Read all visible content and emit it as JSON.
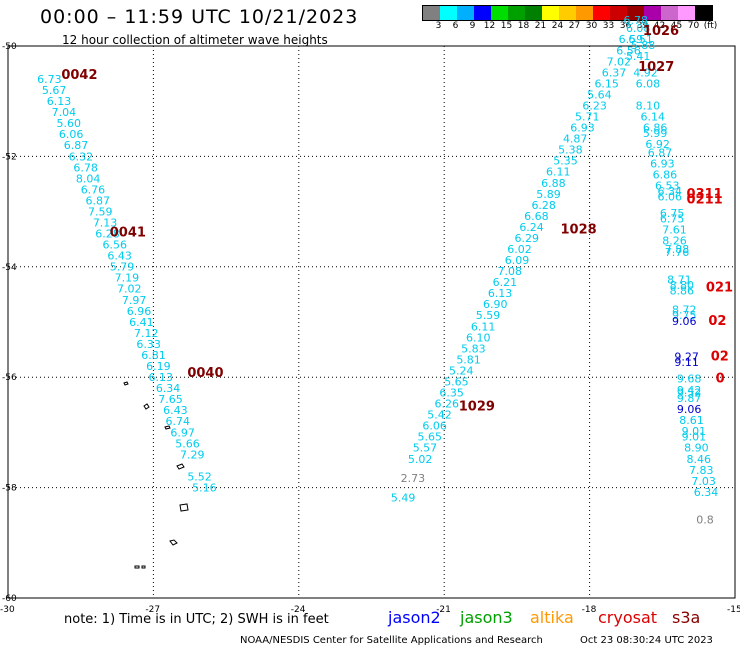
{
  "header": {
    "title": "00:00 – 11:59 UTC 10/21/2023",
    "subtitle": "12 hour collection of altimeter wave heights"
  },
  "colorbar": {
    "labels": [
      "3",
      "6",
      "9",
      "12",
      "15",
      "18",
      "21",
      "24",
      "27",
      "30",
      "33",
      "36",
      "39",
      "42",
      "45",
      "70",
      "(ft)"
    ],
    "colors": [
      "#808080",
      "#00ffff",
      "#00b0ff",
      "#0000ff",
      "#00dd00",
      "#00a000",
      "#008000",
      "#ffff00",
      "#ffcc00",
      "#ff9900",
      "#ff0000",
      "#cc0000",
      "#990000",
      "#aa00aa",
      "#cc66cc",
      "#ff99ff",
      "#000000"
    ]
  },
  "axes": {
    "y_labels": [
      {
        "value": -50,
        "text": "-50"
      },
      {
        "value": -52,
        "text": "-52"
      },
      {
        "value": -54,
        "text": "-54"
      },
      {
        "value": -56,
        "text": "-56"
      },
      {
        "value": -58,
        "text": "-58"
      },
      {
        "value": -60,
        "text": "-60"
      }
    ],
    "x_labels": [
      {
        "value": -30,
        "text": "-30"
      },
      {
        "value": -27,
        "text": "-27"
      },
      {
        "value": -24,
        "text": "-24"
      },
      {
        "value": -21,
        "text": "-21"
      },
      {
        "value": -18,
        "text": "-18"
      },
      {
        "value": -15,
        "text": "-15"
      }
    ],
    "lon_range": [
      -30,
      -15
    ],
    "lat_range": [
      -60,
      -50
    ]
  },
  "colors": {
    "light_cyan": "#00ccee",
    "dark_blue": "#0000cc",
    "gray": "#808080",
    "pass_dark": "#800000",
    "pass_red": "#dd0000"
  },
  "tracks": {
    "west": [
      {
        "v": "6.73",
        "lon": -29.4,
        "lat": -50.67
      },
      {
        "v": "5.67",
        "lon": -29.3,
        "lat": -50.87
      },
      {
        "v": "6.13",
        "lon": -29.2,
        "lat": -51.07
      },
      {
        "v": "7.04",
        "lon": -29.1,
        "lat": -51.27
      },
      {
        "v": "5.60",
        "lon": -29.0,
        "lat": -51.47
      },
      {
        "v": "6.06",
        "lon": -28.95,
        "lat": -51.67
      },
      {
        "v": "6.87",
        "lon": -28.85,
        "lat": -51.87
      },
      {
        "v": "6.32",
        "lon": -28.75,
        "lat": -52.07
      },
      {
        "v": "6.78",
        "lon": -28.65,
        "lat": -52.27
      },
      {
        "v": "8.04",
        "lon": -28.6,
        "lat": -52.47
      },
      {
        "v": "6.76",
        "lon": -28.5,
        "lat": -52.67
      },
      {
        "v": "6.87",
        "lon": -28.4,
        "lat": -52.87
      },
      {
        "v": "7.59",
        "lon": -28.35,
        "lat": -53.07
      },
      {
        "v": "7.13",
        "lon": -28.25,
        "lat": -53.27
      },
      {
        "v": "6.28",
        "lon": -28.2,
        "lat": -53.47
      },
      {
        "v": "6.56",
        "lon": -28.05,
        "lat": -53.67
      },
      {
        "v": "6.43",
        "lon": -27.95,
        "lat": -53.87
      },
      {
        "v": "5.79",
        "lon": -27.9,
        "lat": -54.07
      },
      {
        "v": "7.19",
        "lon": -27.8,
        "lat": -54.27
      },
      {
        "v": "7.02",
        "lon": -27.75,
        "lat": -54.47
      },
      {
        "v": "7.97",
        "lon": -27.65,
        "lat": -54.67
      },
      {
        "v": "6.96",
        "lon": -27.55,
        "lat": -54.87
      },
      {
        "v": "6.41",
        "lon": -27.5,
        "lat": -55.07
      },
      {
        "v": "7.12",
        "lon": -27.4,
        "lat": -55.27
      },
      {
        "v": "6.33",
        "lon": -27.35,
        "lat": -55.47
      },
      {
        "v": "6.81",
        "lon": -27.25,
        "lat": -55.67
      },
      {
        "v": "6.19",
        "lon": -27.15,
        "lat": -55.87
      },
      {
        "v": "6.13",
        "lon": -27.1,
        "lat": -56.07
      },
      {
        "v": "6.34",
        "lon": -26.95,
        "lat": -56.27
      },
      {
        "v": "7.65",
        "lon": -26.9,
        "lat": -56.47
      },
      {
        "v": "6.43",
        "lon": -26.8,
        "lat": -56.67
      },
      {
        "v": "6.74",
        "lon": -26.75,
        "lat": -56.87
      },
      {
        "v": "6.97",
        "lon": -26.65,
        "lat": -57.07
      },
      {
        "v": "5.66",
        "lon": -26.55,
        "lat": -57.27
      },
      {
        "v": "7.29",
        "lon": -26.45,
        "lat": -57.47
      },
      {
        "v": "5.52",
        "lon": -26.3,
        "lat": -57.87
      },
      {
        "v": "5.16",
        "lon": -26.2,
        "lat": -58.07
      }
    ],
    "east": [
      {
        "v": "6.78",
        "lon": -17.3,
        "lat": -49.6
      },
      {
        "v": "6.08",
        "lon": -17.25,
        "lat": -49.75
      },
      {
        "v": "6.59",
        "lon": -17.4,
        "lat": -49.95
      },
      {
        "v": "6.51",
        "lon": -17.2,
        "lat": -49.95
      },
      {
        "v": "5.88",
        "lon": -17.15,
        "lat": -50.05
      },
      {
        "v": "6.56",
        "lon": -17.45,
        "lat": -50.15
      },
      {
        "v": "5.41",
        "lon": -17.25,
        "lat": -50.25
      },
      {
        "v": "7.02",
        "lon": -17.65,
        "lat": -50.35
      },
      {
        "v": "4.92",
        "lon": -17.1,
        "lat": -50.55
      },
      {
        "v": "6.37",
        "lon": -17.75,
        "lat": -50.55
      },
      {
        "v": "6.08",
        "lon": -17.05,
        "lat": -50.75
      },
      {
        "v": "6.15",
        "lon": -17.9,
        "lat": -50.75
      },
      {
        "v": "5.64",
        "lon": -18.05,
        "lat": -50.95
      },
      {
        "v": "8.10",
        "lon": -17.05,
        "lat": -51.15
      },
      {
        "v": "6.23",
        "lon": -18.15,
        "lat": -51.15
      },
      {
        "v": "5.71",
        "lon": -18.3,
        "lat": -51.35
      },
      {
        "v": "6.14",
        "lon": -16.95,
        "lat": -51.35
      },
      {
        "v": "6.93",
        "lon": -18.4,
        "lat": -51.55
      },
      {
        "v": "6.86",
        "lon": -16.9,
        "lat": -51.55
      },
      {
        "v": "5.99",
        "lon": -16.9,
        "lat": -51.65
      },
      {
        "v": "4.87",
        "lon": -18.55,
        "lat": -51.75
      },
      {
        "v": "6.92",
        "lon": -16.85,
        "lat": -51.85
      },
      {
        "v": "5.38",
        "lon": -18.65,
        "lat": -51.95
      },
      {
        "v": "6.87",
        "lon": -16.8,
        "lat": -52.0
      },
      {
        "v": "5.35",
        "lon": -18.75,
        "lat": -52.15
      },
      {
        "v": "6.93",
        "lon": -16.75,
        "lat": -52.2
      },
      {
        "v": "6.11",
        "lon": -18.9,
        "lat": -52.35
      },
      {
        "v": "6.86",
        "lon": -16.7,
        "lat": -52.4
      },
      {
        "v": "6.88",
        "lon": -19.0,
        "lat": -52.55
      },
      {
        "v": "6.53",
        "lon": -16.65,
        "lat": -52.6
      },
      {
        "v": "6.34",
        "lon": -16.6,
        "lat": -52.7
      },
      {
        "v": "5.89",
        "lon": -19.1,
        "lat": -52.75
      },
      {
        "v": "6.06",
        "lon": -16.6,
        "lat": -52.8
      },
      {
        "v": "6.28",
        "lon": -19.2,
        "lat": -52.95
      },
      {
        "v": "6.75",
        "lon": -16.55,
        "lat": -53.1
      },
      {
        "v": "6.68",
        "lon": -19.35,
        "lat": -53.15
      },
      {
        "v": "6.75",
        "lon": -16.55,
        "lat": -53.2
      },
      {
        "v": "6.24",
        "lon": -19.45,
        "lat": -53.35
      },
      {
        "v": "7.61",
        "lon": -16.5,
        "lat": -53.4
      },
      {
        "v": "6.29",
        "lon": -19.55,
        "lat": -53.55
      },
      {
        "v": "8.26",
        "lon": -16.5,
        "lat": -53.6
      },
      {
        "v": "7.88",
        "lon": -16.45,
        "lat": -53.75
      },
      {
        "v": "6.02",
        "lon": -19.7,
        "lat": -53.75
      },
      {
        "v": "7.76",
        "lon": -16.45,
        "lat": -53.8
      },
      {
        "v": "6.09",
        "lon": -19.75,
        "lat": -53.95
      },
      {
        "v": "7.08",
        "lon": -19.9,
        "lat": -54.15
      },
      {
        "v": "8.71",
        "lon": -16.4,
        "lat": -54.3
      },
      {
        "v": "6.21",
        "lon": -20.0,
        "lat": -54.35
      },
      {
        "v": "8.80",
        "lon": -16.35,
        "lat": -54.4
      },
      {
        "v": "8.86",
        "lon": -16.35,
        "lat": -54.5
      },
      {
        "v": "6.13",
        "lon": -20.1,
        "lat": -54.55
      },
      {
        "v": "6.90",
        "lon": -20.2,
        "lat": -54.75
      },
      {
        "v": "8.72",
        "lon": -16.3,
        "lat": -54.85
      },
      {
        "v": "5.59",
        "lon": -20.35,
        "lat": -54.95
      },
      {
        "v": "9.75",
        "lon": -16.3,
        "lat": -54.95
      },
      {
        "v": "6.11",
        "lon": -20.45,
        "lat": -55.15
      },
      {
        "v": "6.10",
        "lon": -20.55,
        "lat": -55.35
      },
      {
        "v": "5.83",
        "lon": -20.65,
        "lat": -55.55
      },
      {
        "v": "5.81",
        "lon": -20.75,
        "lat": -55.75
      },
      {
        "v": "5.24",
        "lon": -20.9,
        "lat": -55.95
      },
      {
        "v": "9.68",
        "lon": -16.2,
        "lat": -56.1
      },
      {
        "v": "5.65",
        "lon": -21.0,
        "lat": -56.15
      },
      {
        "v": "9.42",
        "lon": -16.2,
        "lat": -56.3
      },
      {
        "v": "9.52",
        "lon": -16.2,
        "lat": -56.35
      },
      {
        "v": "6.35",
        "lon": -21.1,
        "lat": -56.35
      },
      {
        "v": "9.87",
        "lon": -16.2,
        "lat": -56.45
      },
      {
        "v": "6.26",
        "lon": -21.2,
        "lat": -56.55
      },
      {
        "v": "5.42",
        "lon": -21.35,
        "lat": -56.75
      },
      {
        "v": "8.61",
        "lon": -16.15,
        "lat": -56.85
      },
      {
        "v": "6.06",
        "lon": -21.45,
        "lat": -56.95
      },
      {
        "v": "9.01",
        "lon": -16.1,
        "lat": -57.05
      },
      {
        "v": "9.01",
        "lon": -16.1,
        "lat": -57.15
      },
      {
        "v": "5.65",
        "lon": -21.55,
        "lat": -57.15
      },
      {
        "v": "5.57",
        "lon": -21.65,
        "lat": -57.35
      },
      {
        "v": "8.90",
        "lon": -16.05,
        "lat": -57.35
      },
      {
        "v": "8.46",
        "lon": -16.0,
        "lat": -57.55
      },
      {
        "v": "5.02",
        "lon": -21.75,
        "lat": -57.55
      },
      {
        "v": "7.83",
        "lon": -15.95,
        "lat": -57.75
      },
      {
        "v": "7.03",
        "lon": -15.9,
        "lat": -57.95
      },
      {
        "v": "6.34",
        "lon": -15.85,
        "lat": -58.15
      }
    ],
    "east_blue": [
      {
        "v": "9.06",
        "lon": -16.3,
        "lat": -55.05
      },
      {
        "v": "9.27",
        "lon": -16.25,
        "lat": -55.7
      },
      {
        "v": "9.11",
        "lon": -16.25,
        "lat": -55.8
      },
      {
        "v": "9.06",
        "lon": -16.2,
        "lat": -56.65
      }
    ],
    "gray": [
      {
        "v": "2.73",
        "lon": -21.9,
        "lat": -57.9
      },
      {
        "v": "0.8",
        "lon": -15.8,
        "lat": -58.65
      }
    ],
    "extra_cyan": [
      {
        "v": "5.49",
        "lon": -22.1,
        "lat": -58.25
      }
    ]
  },
  "passes": [
    {
      "label": "0042",
      "lon": -28.9,
      "lat": -50.6,
      "color": "dark"
    },
    {
      "label": "0041",
      "lon": -27.9,
      "lat": -53.45,
      "color": "dark"
    },
    {
      "label": "0040",
      "lon": -26.3,
      "lat": -56.0,
      "color": "dark"
    },
    {
      "label": "1026",
      "lon": -16.9,
      "lat": -49.8,
      "color": "dark"
    },
    {
      "label": "1027",
      "lon": -17.0,
      "lat": -50.45,
      "color": "dark"
    },
    {
      "label": "1028",
      "lon": -18.6,
      "lat": -53.4,
      "color": "dark"
    },
    {
      "label": "1029",
      "lon": -20.7,
      "lat": -56.6,
      "color": "dark"
    },
    {
      "label": "0311",
      "lon": -16.0,
      "lat": -52.75,
      "color": "red"
    },
    {
      "label": "0211",
      "lon": -16.0,
      "lat": -52.85,
      "color": "red"
    },
    {
      "label": "021",
      "lon": -15.6,
      "lat": -54.45,
      "color": "red"
    },
    {
      "label": "02",
      "lon": -15.55,
      "lat": -55.05,
      "color": "red"
    },
    {
      "label": "02",
      "lon": -15.5,
      "lat": -55.7,
      "color": "red"
    },
    {
      "label": "0",
      "lon": -15.4,
      "lat": -56.1,
      "color": "red"
    }
  ],
  "footer": {
    "note": "note: 1) Time is in UTC; 2) SWH is in feet",
    "satellites": [
      {
        "name": "jason2",
        "color": "#0000ff"
      },
      {
        "name": "jason3",
        "color": "#00a000"
      },
      {
        "name": "altika",
        "color": "#ff9900"
      },
      {
        "name": "cryosat",
        "color": "#dd0000"
      },
      {
        "name": "s3a",
        "color": "#880000"
      }
    ],
    "credit": "NOAA/NESDIS Center for Satellite Applications and Research",
    "timestamp": "Oct 23 08:30:24 UTC 2023"
  }
}
